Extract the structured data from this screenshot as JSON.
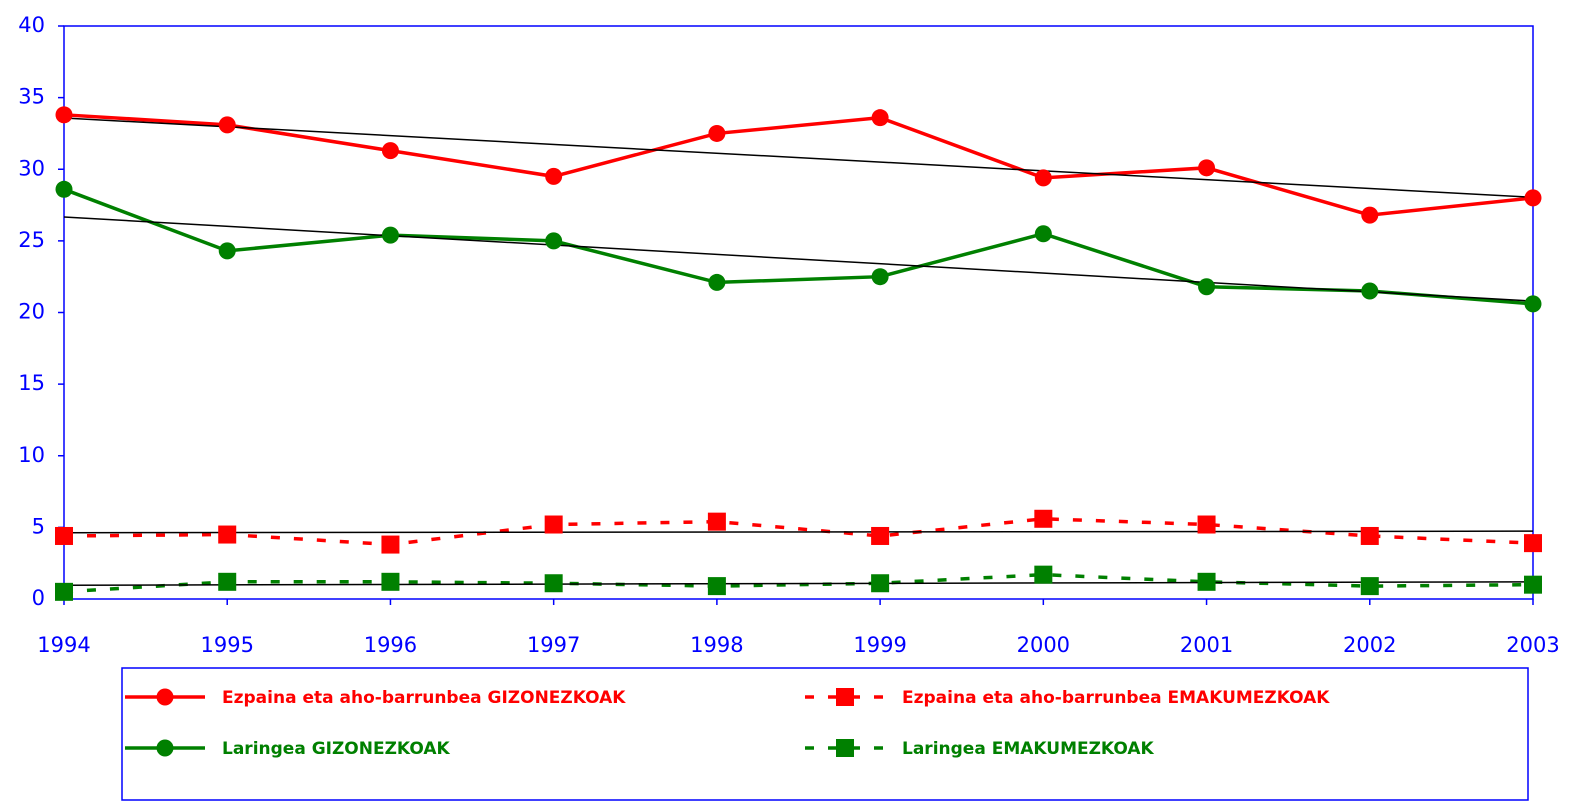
{
  "chart_data": {
    "type": "line",
    "x": [
      1994,
      1995,
      1996,
      1997,
      1998,
      1999,
      2000,
      2001,
      2002,
      2003
    ],
    "xlim": [
      1994,
      2003
    ],
    "xticks": [
      1994,
      1995,
      1996,
      1997,
      1998,
      1999,
      2000,
      2001,
      2002,
      2003
    ],
    "ylim": [
      0,
      40
    ],
    "yticks": [
      0,
      5,
      10,
      15,
      20,
      25,
      30,
      35,
      40
    ],
    "trendlines": true,
    "axis_color": "#0000ff",
    "series": [
      {
        "name": "Ezpaina eta aho-barrunbea GIZONEZKOAK",
        "color": "#ff0000",
        "line_style": "solid",
        "marker": "circle",
        "values": [
          33.8,
          33.1,
          31.3,
          29.5,
          32.5,
          33.6,
          29.4,
          30.1,
          26.8,
          28.0
        ]
      },
      {
        "name": "Ezpaina eta aho-barrunbea EMAKUMEZKOAK",
        "color": "#ff0000",
        "line_style": "dashed",
        "marker": "square",
        "values": [
          4.4,
          4.5,
          3.8,
          5.2,
          5.4,
          4.4,
          5.6,
          5.2,
          4.4,
          3.9
        ]
      },
      {
        "name": "Laringea GIZONEZKOAK",
        "color": "#008000",
        "line_style": "solid",
        "marker": "circle",
        "values": [
          28.6,
          24.3,
          25.4,
          25.0,
          22.1,
          22.5,
          25.5,
          21.8,
          21.5,
          20.6
        ]
      },
      {
        "name": "Laringea EMAKUMEZKOAK",
        "color": "#008000",
        "line_style": "dashed",
        "marker": "square",
        "values": [
          0.5,
          1.2,
          1.2,
          1.1,
          0.9,
          1.1,
          1.7,
          1.2,
          0.9,
          1.0
        ]
      }
    ]
  }
}
